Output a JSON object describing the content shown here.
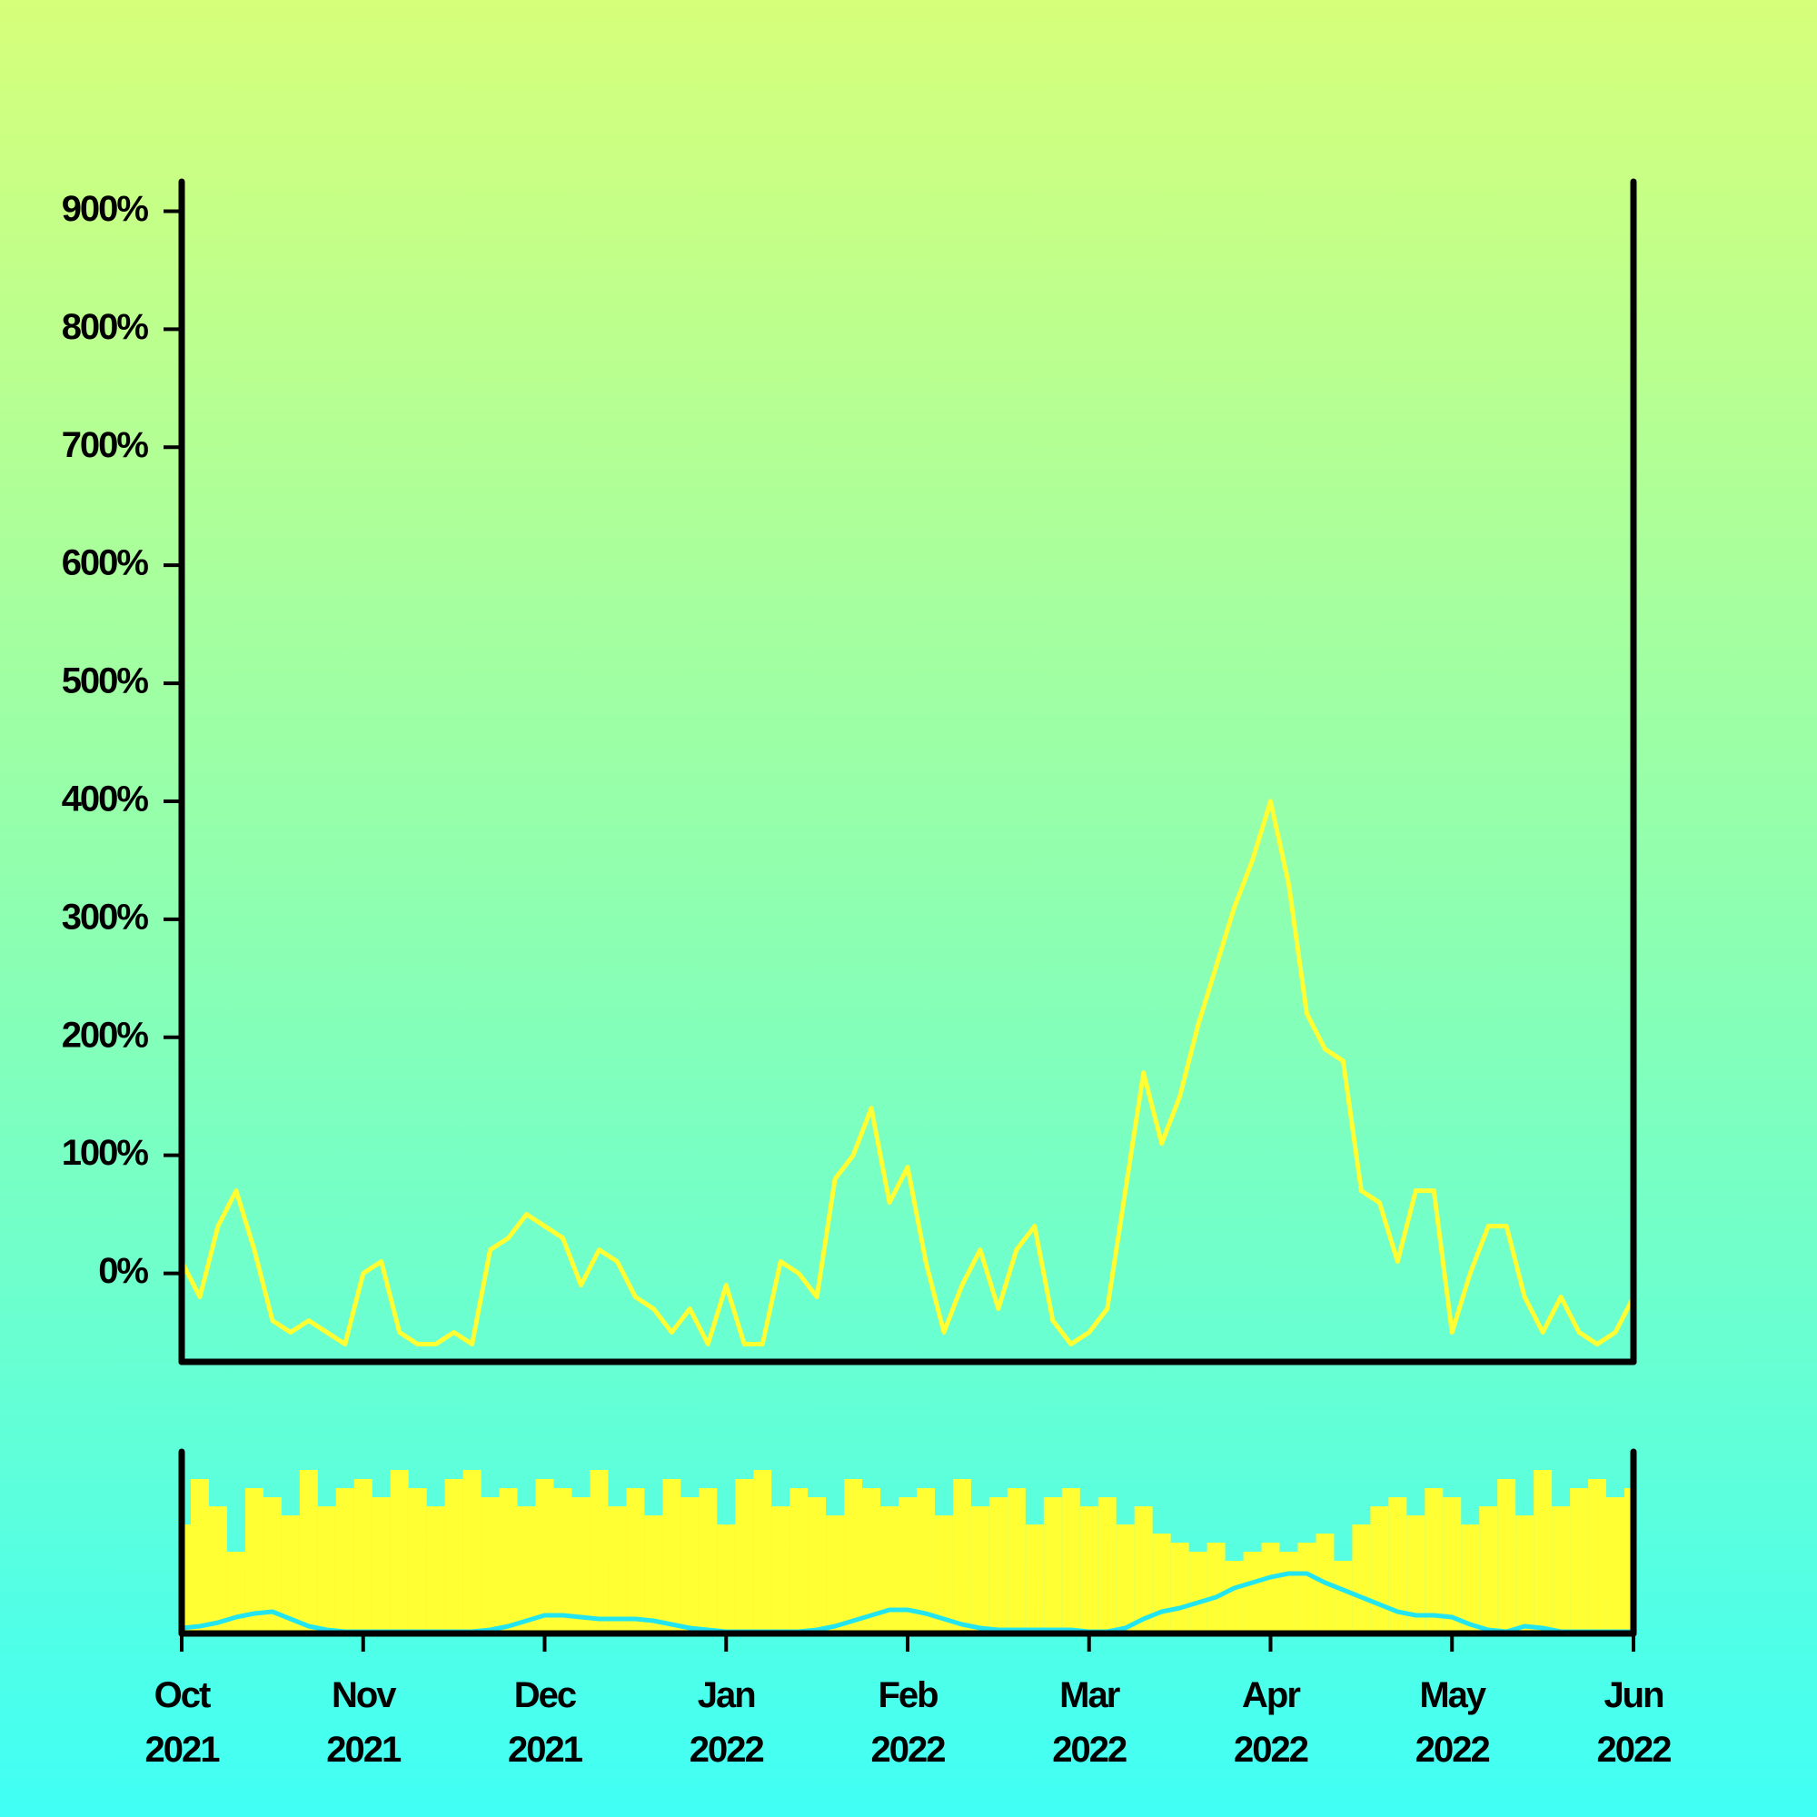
{
  "chart_data": [
    {
      "type": "line",
      "color": "#ffff33",
      "x": [
        0,
        0.1,
        0.2,
        0.3,
        0.4,
        0.5,
        0.6,
        0.7,
        0.8,
        0.9,
        1,
        1.1,
        1.2,
        1.3,
        1.4,
        1.5,
        1.6,
        1.7,
        1.8,
        1.9,
        2,
        2.1,
        2.2,
        2.3,
        2.4,
        2.5,
        2.6,
        2.7,
        2.8,
        2.9,
        3,
        3.1,
        3.2,
        3.3,
        3.4,
        3.5,
        3.6,
        3.7,
        3.8,
        3.9,
        4,
        4.1,
        4.2,
        4.3,
        4.4,
        4.5,
        4.6,
        4.7,
        4.8,
        4.9,
        5,
        5.1,
        5.2,
        5.3,
        5.4,
        5.5,
        5.6,
        5.7,
        5.8,
        5.9,
        6,
        6.1,
        6.2,
        6.3,
        6.4,
        6.5,
        6.6,
        6.7,
        6.8,
        6.9,
        7,
        7.1,
        7.2,
        7.3,
        7.4,
        7.5,
        7.6,
        7.7,
        7.8,
        7.9,
        8
      ],
      "values": [
        10,
        -20,
        40,
        70,
        20,
        -40,
        -50,
        -40,
        -50,
        -60,
        0,
        10,
        -50,
        -60,
        -60,
        -50,
        -60,
        20,
        30,
        50,
        40,
        30,
        -10,
        20,
        10,
        -20,
        -30,
        -50,
        -30,
        -60,
        -10,
        -60,
        -60,
        10,
        0,
        -20,
        80,
        100,
        140,
        60,
        90,
        10,
        -50,
        -10,
        20,
        -30,
        20,
        40,
        -40,
        -60,
        -50,
        -30,
        70,
        170,
        110,
        150,
        210,
        260,
        310,
        350,
        400,
        330,
        220,
        190,
        180,
        70,
        60,
        10,
        70,
        70,
        -50,
        0,
        40,
        40,
        -20,
        -50,
        -20,
        -50,
        -60,
        -50,
        -20
      ],
      "xlim": [
        0,
        8
      ],
      "ylim": [
        -75,
        925
      ],
      "yticks": [
        {
          "value": 0,
          "label": "0%"
        },
        {
          "value": 100,
          "label": "100%"
        },
        {
          "value": 200,
          "label": "200%"
        },
        {
          "value": 300,
          "label": "300%"
        },
        {
          "value": 400,
          "label": "400%"
        },
        {
          "value": 500,
          "label": "500%"
        },
        {
          "value": 600,
          "label": "600%"
        },
        {
          "value": 700,
          "label": "700%"
        },
        {
          "value": 800,
          "label": "800%"
        },
        {
          "value": 900,
          "label": "900%"
        }
      ]
    },
    {
      "type": "bar",
      "x": [
        0,
        0.1,
        0.2,
        0.3,
        0.4,
        0.5,
        0.6,
        0.7,
        0.8,
        0.9,
        1,
        1.1,
        1.2,
        1.3,
        1.4,
        1.5,
        1.6,
        1.7,
        1.8,
        1.9,
        2,
        2.1,
        2.2,
        2.3,
        2.4,
        2.5,
        2.6,
        2.7,
        2.8,
        2.9,
        3,
        3.1,
        3.2,
        3.3,
        3.4,
        3.5,
        3.6,
        3.7,
        3.8,
        3.9,
        4,
        4.1,
        4.2,
        4.3,
        4.4,
        4.5,
        4.6,
        4.7,
        4.8,
        4.9,
        5,
        5.1,
        5.2,
        5.3,
        5.4,
        5.5,
        5.6,
        5.7,
        5.8,
        5.9,
        6,
        6.1,
        6.2,
        6.3,
        6.4,
        6.5,
        6.6,
        6.7,
        6.8,
        6.9,
        7,
        7.1,
        7.2,
        7.3,
        7.4,
        7.5,
        7.6,
        7.7,
        7.8,
        7.9,
        8
      ],
      "series": [
        {
          "type": "bar",
          "color": "#ffff33",
          "values": [
            60,
            85,
            70,
            45,
            80,
            75,
            65,
            90,
            70,
            80,
            85,
            75,
            90,
            80,
            70,
            85,
            90,
            75,
            80,
            70,
            85,
            80,
            75,
            90,
            70,
            80,
            65,
            85,
            75,
            80,
            60,
            85,
            90,
            70,
            80,
            75,
            65,
            85,
            80,
            70,
            75,
            80,
            65,
            85,
            70,
            75,
            80,
            60,
            75,
            80,
            70,
            75,
            60,
            70,
            55,
            50,
            45,
            50,
            40,
            45,
            50,
            45,
            50,
            55,
            40,
            60,
            70,
            75,
            65,
            80,
            75,
            60,
            70,
            85,
            65,
            90,
            70,
            80,
            85,
            75,
            80
          ]
        },
        {
          "type": "line",
          "color": "#22e5f0",
          "values": [
            3,
            4,
            6,
            9,
            11,
            12,
            8,
            4,
            2,
            1,
            1,
            1,
            1,
            1,
            1,
            1,
            1,
            2,
            4,
            7,
            10,
            10,
            9,
            8,
            8,
            8,
            7,
            5,
            3,
            2,
            1,
            1,
            1,
            1,
            1,
            2,
            4,
            7,
            10,
            13,
            13,
            11,
            8,
            5,
            3,
            2,
            2,
            2,
            2,
            2,
            1,
            1,
            3,
            8,
            12,
            14,
            17,
            20,
            25,
            28,
            31,
            33,
            33,
            28,
            24,
            20,
            16,
            12,
            10,
            10,
            9,
            5,
            2,
            1,
            4,
            3,
            1,
            1,
            1,
            1,
            1
          ]
        }
      ],
      "xlim": [
        0,
        8
      ],
      "ylim": [
        0,
        100
      ],
      "xticks": [
        {
          "value": 0,
          "label": "Oct\n2021"
        },
        {
          "value": 1,
          "label": "Nov\n2021"
        },
        {
          "value": 2,
          "label": "Dec\n2021"
        },
        {
          "value": 3,
          "label": "Jan\n2022"
        },
        {
          "value": 4,
          "label": "Feb\n2022"
        },
        {
          "value": 5,
          "label": "Mar\n2022"
        },
        {
          "value": 6,
          "label": "Apr\n2022"
        },
        {
          "value": 7,
          "label": "May\n2022"
        },
        {
          "value": 8,
          "label": "Jun\n2022"
        }
      ]
    }
  ]
}
